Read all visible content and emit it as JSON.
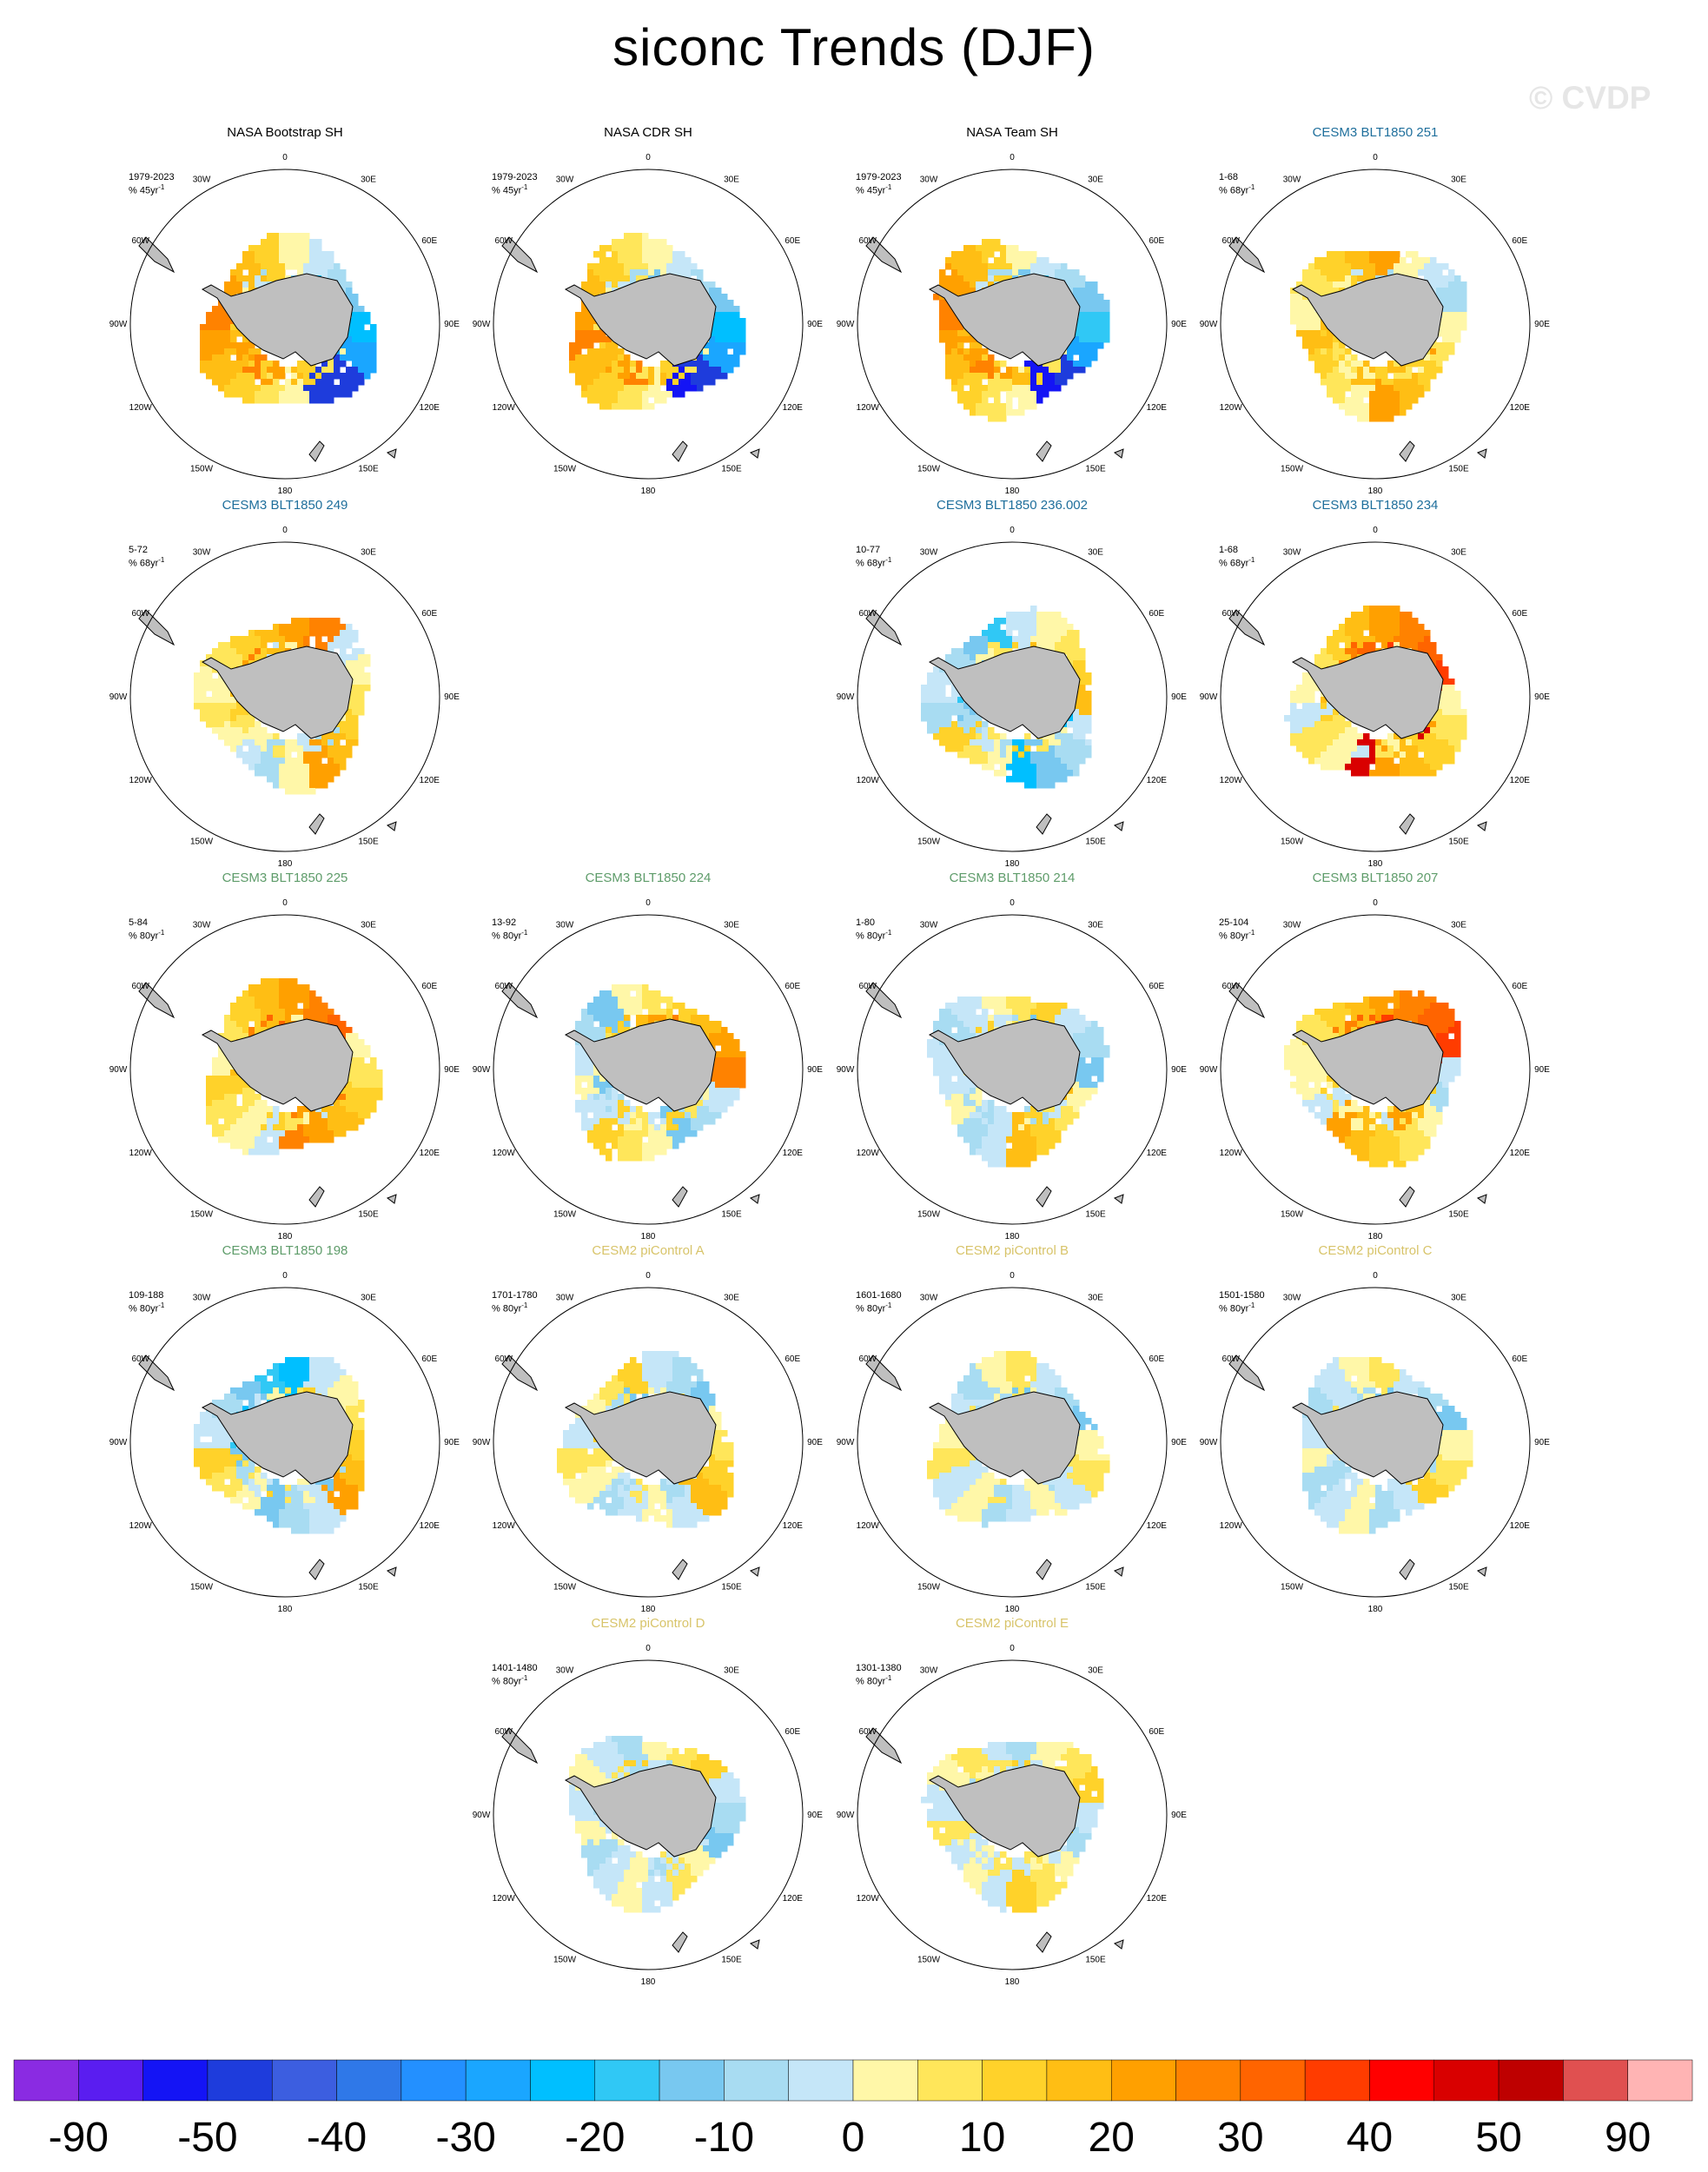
{
  "title": "siconc Trends (DJF)",
  "watermark": "© CVDP",
  "chart_data": {
    "type": "heatmap",
    "variable": "siconc",
    "season": "DJF",
    "projection": "south-polar-stereographic",
    "land_color": "#bfbfbf",
    "longitude_labels": [
      "0",
      "30E",
      "60E",
      "90E",
      "120E",
      "150E",
      "180",
      "150W",
      "120W",
      "90W",
      "60W",
      "30W"
    ],
    "panels": [
      {
        "name": "NASA Bootstrap SH",
        "years": "1979-2023",
        "units": "% 45yr",
        "color": "#000000",
        "pattern": "obs1"
      },
      {
        "name": "NASA CDR SH",
        "years": "1979-2023",
        "units": "% 45yr",
        "color": "#000000",
        "pattern": "obs2"
      },
      {
        "name": "NASA Team SH",
        "years": "1979-2023",
        "units": "% 45yr",
        "color": "#000000",
        "pattern": "obs3"
      },
      {
        "name": "CESM3 BLT1850 251",
        "years": "1-68",
        "units": "% 68yr",
        "color": "#1f6f9c",
        "pattern": "warm1"
      },
      {
        "name": "CESM3 BLT1850 249",
        "years": "5-72",
        "units": "% 68yr",
        "color": "#1f6f9c",
        "pattern": "warm2"
      },
      {
        "name": "CESM3 BLT1850 236.002",
        "years": "10-77",
        "units": "% 68yr",
        "color": "#1f6f9c",
        "pattern": "cool1"
      },
      {
        "name": "CESM3 BLT1850 234",
        "years": "1-68",
        "units": "% 68yr",
        "color": "#1f6f9c",
        "pattern": "warm3"
      },
      {
        "name": "CESM3 BLT1850 225",
        "years": "5-84",
        "units": "% 80yr",
        "color": "#5e9c6a",
        "pattern": "warm4"
      },
      {
        "name": "CESM3 BLT1850 224",
        "years": "13-92",
        "units": "% 80yr",
        "color": "#5e9c6a",
        "pattern": "mixed1"
      },
      {
        "name": "CESM3 BLT1850 214",
        "years": "1-80",
        "units": "% 80yr",
        "color": "#5e9c6a",
        "pattern": "mixed2"
      },
      {
        "name": "CESM3 BLT1850 207",
        "years": "25-104",
        "units": "% 80yr",
        "color": "#5e9c6a",
        "pattern": "warm5"
      },
      {
        "name": "CESM3 BLT1850 198",
        "years": "109-188",
        "units": "% 80yr",
        "color": "#5e9c6a",
        "pattern": "cool2"
      },
      {
        "name": "CESM2 piControl A",
        "years": "1701-1780",
        "units": "% 80yr",
        "color": "#d8c46a",
        "pattern": "mixed3"
      },
      {
        "name": "CESM2 piControl B",
        "years": "1601-1680",
        "units": "% 80yr",
        "color": "#d8c46a",
        "pattern": "mixed4"
      },
      {
        "name": "CESM2 piControl C",
        "years": "1501-1580",
        "units": "% 80yr",
        "color": "#d8c46a",
        "pattern": "mixed5"
      },
      {
        "name": "CESM2 piControl D",
        "years": "1401-1480",
        "units": "% 80yr",
        "color": "#d8c46a",
        "pattern": "mixed6"
      },
      {
        "name": "CESM2 piControl E",
        "years": "1301-1380",
        "units": "% 80yr",
        "color": "#d8c46a",
        "pattern": "mixed7"
      }
    ],
    "colorbar": {
      "colors": [
        "#8a2be2",
        "#5a1df0",
        "#1414f5",
        "#1e3cdc",
        "#3c5ee0",
        "#2f78e8",
        "#2390ff",
        "#1aa6ff",
        "#00bfff",
        "#30c8f5",
        "#78c8f0",
        "#a8dcf2",
        "#c5e6f8",
        "#fff7a8",
        "#ffe65a",
        "#ffd22a",
        "#ffbe14",
        "#ffa000",
        "#ff8200",
        "#ff6400",
        "#ff3c00",
        "#ff0000",
        "#d90000",
        "#be0000",
        "#e05050",
        "#ffb4b4"
      ],
      "labels": [
        "-90",
        "-50",
        "-40",
        "-30",
        "-20",
        "-10",
        "0",
        "10",
        "20",
        "30",
        "40",
        "50",
        "90"
      ]
    }
  }
}
